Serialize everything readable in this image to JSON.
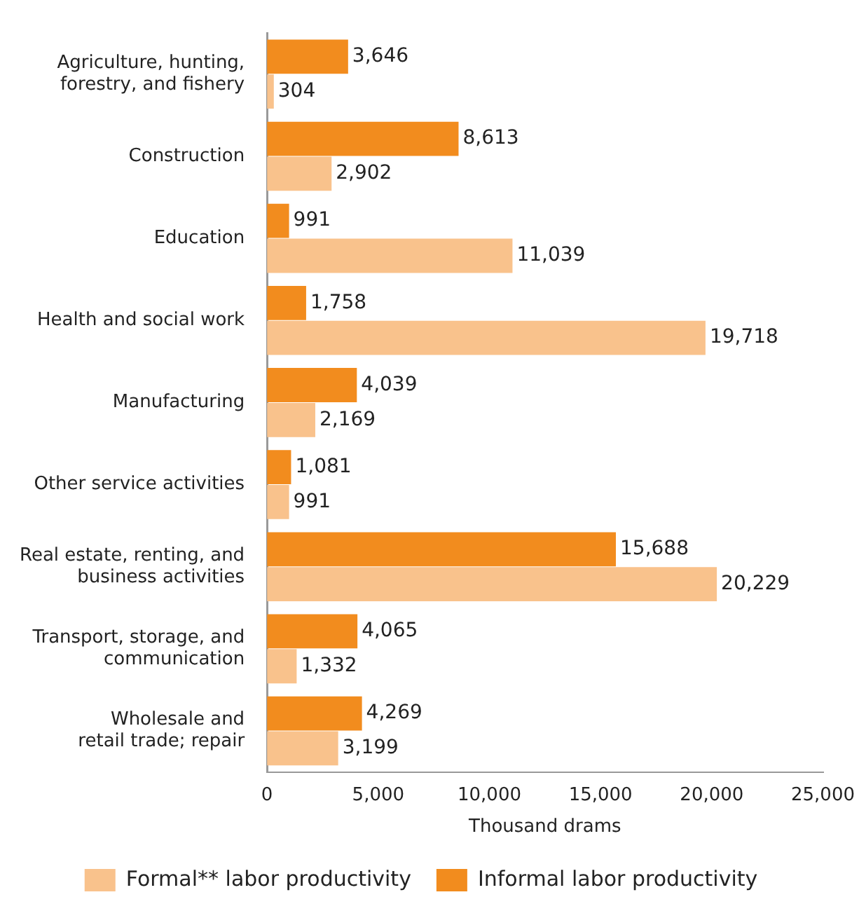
{
  "chart_data": {
    "type": "bar",
    "orientation": "horizontal",
    "xlabel": "Thousand drams",
    "categories": [
      "Agriculture, hunting,\nforestry, and fishery",
      "Construction",
      "Education",
      "Health and social work",
      "Manufacturing",
      "Other service activities",
      "Real estate, renting, and\nbusiness activities",
      "Transport, storage, and\ncommunication",
      "Wholesale and\nretail trade; repair"
    ],
    "series": [
      {
        "name": "Informal labor productivity",
        "color": "#f28c1e",
        "values": [
          3646,
          8613,
          991,
          1758,
          4039,
          1081,
          15688,
          4065,
          4269
        ],
        "value_labels": [
          "3,646",
          "8,613",
          "991",
          "1,758",
          "4,039",
          "1,081",
          "15,688",
          "4,065",
          "4,269"
        ]
      },
      {
        "name": "Formal** labor productivity",
        "color": "#f9c28c",
        "values": [
          304,
          2902,
          11039,
          19718,
          2169,
          991,
          20229,
          1332,
          3199
        ],
        "value_labels": [
          "304",
          "2,902",
          "11,039",
          "19,718",
          "2,169",
          "991",
          "20,229",
          "1,332",
          "3,199"
        ]
      }
    ],
    "xlim": [
      0,
      25000
    ],
    "xticks": [
      0,
      {
        "value": 5000,
        "label": "5,000"
      },
      {
        "value": 10000,
        "label": "10,000"
      },
      {
        "value": 15000,
        "label": "15,000"
      },
      {
        "value": 20000,
        "label": "20,000"
      },
      {
        "value": 25000,
        "label": "25,000"
      }
    ],
    "grid": false,
    "legend": "bottom"
  }
}
